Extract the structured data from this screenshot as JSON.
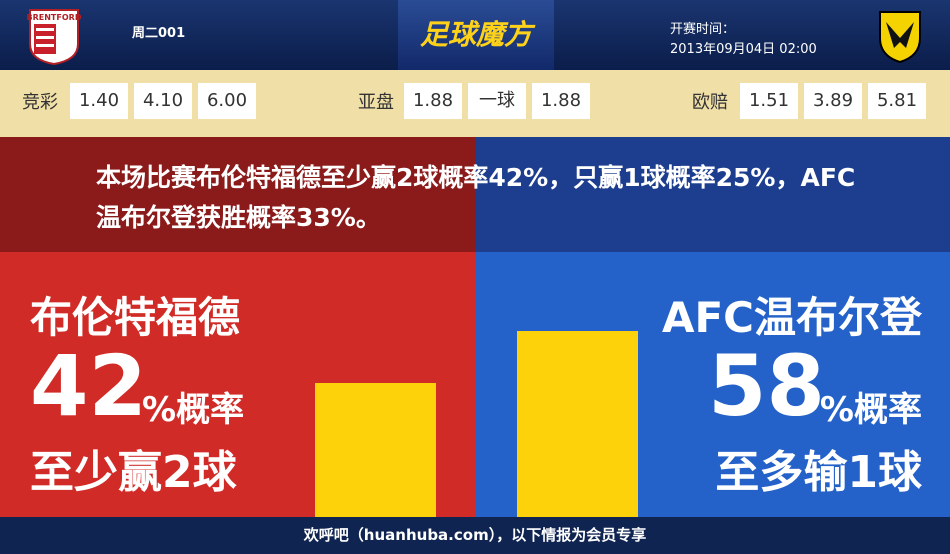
{
  "header": {
    "home_logo_text": "BRENTFORD",
    "match_no": "周二001",
    "brand": "足球魔方",
    "kickoff_label": "开赛时间：",
    "kickoff_time": "2013年09月04日 02:00"
  },
  "odds": {
    "jingcai": {
      "label": "竞彩",
      "values": [
        "1.40",
        "4.10",
        "6.00"
      ]
    },
    "yapan": {
      "label": "亚盘",
      "values": [
        "1.88",
        "一球",
        "1.88"
      ]
    },
    "oupei": {
      "label": "欧赔",
      "values": [
        "1.51",
        "3.89",
        "5.81"
      ]
    }
  },
  "summary": "本场比赛布伦特福德至少赢2球概率42%，只赢1球概率25%，AFC温布尔登获胜概率33%。",
  "panels": {
    "left": {
      "team": "布伦特福德",
      "percent": 42,
      "percent_suffix": "%概率",
      "outcome": "至少赢2球"
    },
    "right": {
      "team": "AFC温布尔登",
      "percent": 58,
      "percent_suffix": "%概率",
      "outcome": "至多输1球"
    }
  },
  "footer": "欢呼吧（huanhuba.com），以下情报为会员专享"
}
